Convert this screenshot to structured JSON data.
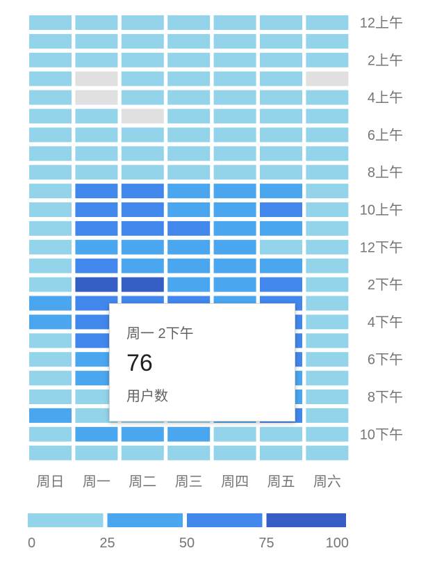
{
  "chart_data": {
    "type": "heatmap",
    "days": [
      "周日",
      "周一",
      "周二",
      "周三",
      "周四",
      "周五",
      "周六"
    ],
    "hour_labels": [
      "12上午",
      "",
      "2上午",
      "",
      "4上午",
      "",
      "6上午",
      "",
      "8上午",
      "",
      "10上午",
      "",
      "12下午",
      "",
      "2下午",
      "",
      "4下午",
      "",
      "6下午",
      "",
      "8下午",
      "",
      "10下午",
      ""
    ],
    "metric": "用户数",
    "value_range": [
      0,
      100
    ],
    "legend": {
      "ticks": [
        "0",
        "25",
        "50",
        "75",
        "100"
      ],
      "bins": [
        {
          "min": 0,
          "max": 25,
          "color": "#93d4ea"
        },
        {
          "min": 25,
          "max": 50,
          "color": "#4aa6ef"
        },
        {
          "min": 50,
          "max": 75,
          "color": "#4287ec"
        },
        {
          "min": 75,
          "max": 100,
          "color": "#345ec4"
        }
      ]
    },
    "empty_color": "#e0e0e0",
    "values": [
      [
        10,
        10,
        10,
        10,
        10,
        10,
        10
      ],
      [
        10,
        10,
        10,
        10,
        10,
        10,
        10
      ],
      [
        10,
        10,
        10,
        10,
        10,
        10,
        10
      ],
      [
        10,
        null,
        10,
        10,
        10,
        10,
        null
      ],
      [
        10,
        null,
        10,
        10,
        10,
        10,
        10
      ],
      [
        10,
        10,
        null,
        10,
        10,
        10,
        10
      ],
      [
        10,
        10,
        10,
        10,
        10,
        10,
        10
      ],
      [
        10,
        10,
        10,
        10,
        10,
        10,
        10
      ],
      [
        10,
        10,
        10,
        10,
        10,
        10,
        10
      ],
      [
        10,
        60,
        60,
        40,
        40,
        40,
        10
      ],
      [
        10,
        60,
        60,
        40,
        40,
        60,
        10
      ],
      [
        10,
        60,
        60,
        60,
        40,
        40,
        10
      ],
      [
        10,
        40,
        40,
        40,
        40,
        10,
        10
      ],
      [
        10,
        60,
        40,
        40,
        40,
        40,
        10
      ],
      [
        10,
        76,
        80,
        40,
        40,
        60,
        10
      ],
      [
        40,
        60,
        60,
        60,
        40,
        60,
        10
      ],
      [
        40,
        60,
        60,
        60,
        40,
        60,
        10
      ],
      [
        10,
        60,
        60,
        60,
        40,
        60,
        10
      ],
      [
        10,
        40,
        60,
        40,
        40,
        60,
        10
      ],
      [
        10,
        40,
        40,
        40,
        40,
        40,
        10
      ],
      [
        10,
        10,
        40,
        40,
        40,
        40,
        10
      ],
      [
        40,
        10,
        10,
        10,
        40,
        60,
        10
      ],
      [
        10,
        40,
        40,
        40,
        10,
        10,
        10
      ],
      [
        10,
        10,
        10,
        10,
        10,
        10,
        10
      ]
    ]
  },
  "tooltip": {
    "title": "周一 2下午",
    "value": "76",
    "metric_label": "用户数"
  }
}
